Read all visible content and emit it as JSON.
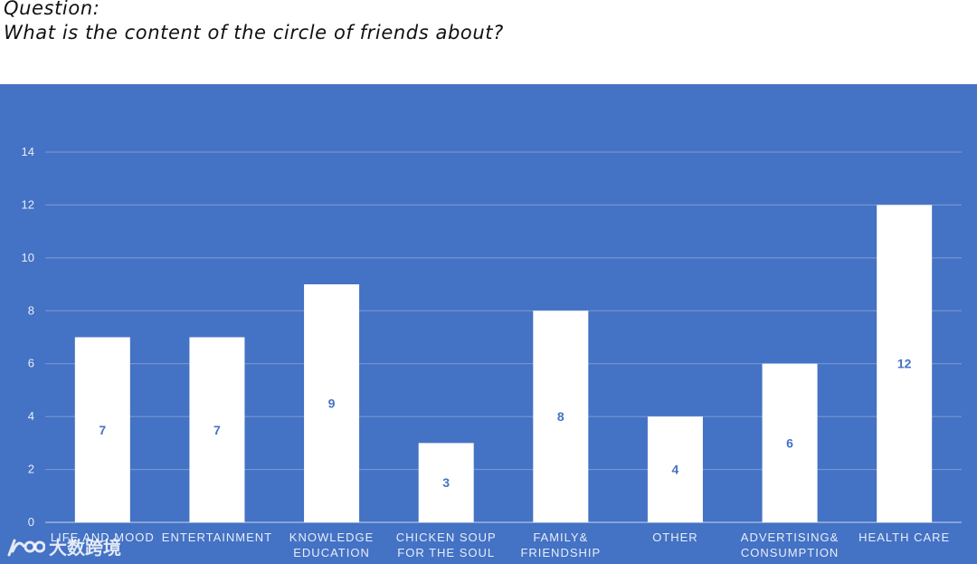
{
  "question": {
    "label": "Question:",
    "text": "What is the content of the circle of friends about?"
  },
  "watermark": {
    "text": "大数跨境"
  },
  "colors": {
    "background": "#4472C4",
    "bar": "#FFFFFF",
    "label": "#4472C4",
    "grid": "#7E9BD6",
    "text": "#E8EEF9"
  },
  "chart_data": {
    "type": "bar",
    "categories": [
      [
        "LIFE AND MOOD"
      ],
      [
        "ENTERTAINMENT"
      ],
      [
        "KNOWLEDGE",
        "EDUCATION"
      ],
      [
        "CHICKEN SOUP",
        "FOR THE SOUL"
      ],
      [
        "FAMILY&",
        "FRIENDSHIP"
      ],
      [
        "OTHER"
      ],
      [
        "ADVERTISING&",
        "CONSUMPTION"
      ],
      [
        "HEALTH CARE"
      ]
    ],
    "values": [
      7,
      7,
      9,
      3,
      8,
      4,
      6,
      12
    ],
    "ylim": [
      0,
      14
    ],
    "yticks": [
      0,
      2,
      4,
      6,
      8,
      10,
      12,
      14
    ],
    "grid": true,
    "data_labels": true
  }
}
